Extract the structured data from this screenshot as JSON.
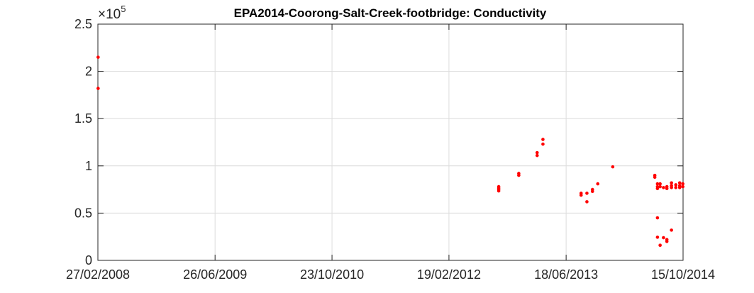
{
  "chart_data": {
    "type": "scatter",
    "title": "EPA2014-Coorong-Salt-Creek-footbridge: Conductivity",
    "xlabel": "",
    "ylabel": "",
    "y_multiplier": {
      "base": "×10",
      "exponent": "5"
    },
    "xlim": [
      "2008-02-27",
      "2014-10-15"
    ],
    "ylim": [
      0,
      2.5
    ],
    "x_ticks": [
      "2008-02-27",
      "2009-06-26",
      "2010-10-23",
      "2012-02-19",
      "2013-06-18",
      "2014-10-15"
    ],
    "x_tick_labels": [
      "27/02/2008",
      "26/06/2009",
      "23/10/2010",
      "19/02/2012",
      "18/06/2013",
      "15/10/2014"
    ],
    "y_ticks": [
      0,
      0.5,
      1,
      1.5,
      2,
      2.5
    ],
    "y_tick_labels": [
      "0",
      "0.5",
      "1",
      "1.5",
      "2",
      "2.5"
    ],
    "grid": true,
    "marker_color": "#ff0000",
    "points": [
      [
        "2008-02-28",
        2.15
      ],
      [
        "2008-02-28",
        1.82
      ],
      [
        "2012-09-12",
        0.78
      ],
      [
        "2012-09-12",
        0.765
      ],
      [
        "2012-09-12",
        0.75
      ],
      [
        "2012-09-12",
        0.735
      ],
      [
        "2012-12-04",
        0.92
      ],
      [
        "2012-12-04",
        0.9
      ],
      [
        "2013-02-18",
        1.14
      ],
      [
        "2013-02-18",
        1.11
      ],
      [
        "2013-03-14",
        1.28
      ],
      [
        "2013-03-14",
        1.23
      ],
      [
        "2013-08-19",
        0.71
      ],
      [
        "2013-08-19",
        0.69
      ],
      [
        "2013-09-12",
        0.71
      ],
      [
        "2013-09-12",
        0.62
      ],
      [
        "2013-10-05",
        0.75
      ],
      [
        "2013-10-05",
        0.73
      ],
      [
        "2013-10-27",
        0.81
      ],
      [
        "2013-12-28",
        0.99
      ],
      [
        "2014-06-20",
        0.9
      ],
      [
        "2014-06-20",
        0.88
      ],
      [
        "2014-07-01",
        0.81
      ],
      [
        "2014-07-01",
        0.78
      ],
      [
        "2014-07-01",
        0.76
      ],
      [
        "2014-07-01",
        0.45
      ],
      [
        "2014-07-01",
        0.245
      ],
      [
        "2014-07-12",
        0.81
      ],
      [
        "2014-07-12",
        0.78
      ],
      [
        "2014-07-12",
        0.16
      ],
      [
        "2014-07-26",
        0.77
      ],
      [
        "2014-07-26",
        0.24
      ],
      [
        "2014-08-09",
        0.78
      ],
      [
        "2014-08-09",
        0.76
      ],
      [
        "2014-08-09",
        0.22
      ],
      [
        "2014-08-09",
        0.2
      ],
      [
        "2014-08-28",
        0.82
      ],
      [
        "2014-08-28",
        0.79
      ],
      [
        "2014-08-28",
        0.77
      ],
      [
        "2014-08-28",
        0.32
      ],
      [
        "2014-09-15",
        0.8
      ],
      [
        "2014-09-15",
        0.77
      ],
      [
        "2014-10-01",
        0.82
      ],
      [
        "2014-10-01",
        0.79
      ],
      [
        "2014-10-01",
        0.77
      ],
      [
        "2014-10-14",
        0.81
      ],
      [
        "2014-10-14",
        0.78
      ]
    ]
  }
}
